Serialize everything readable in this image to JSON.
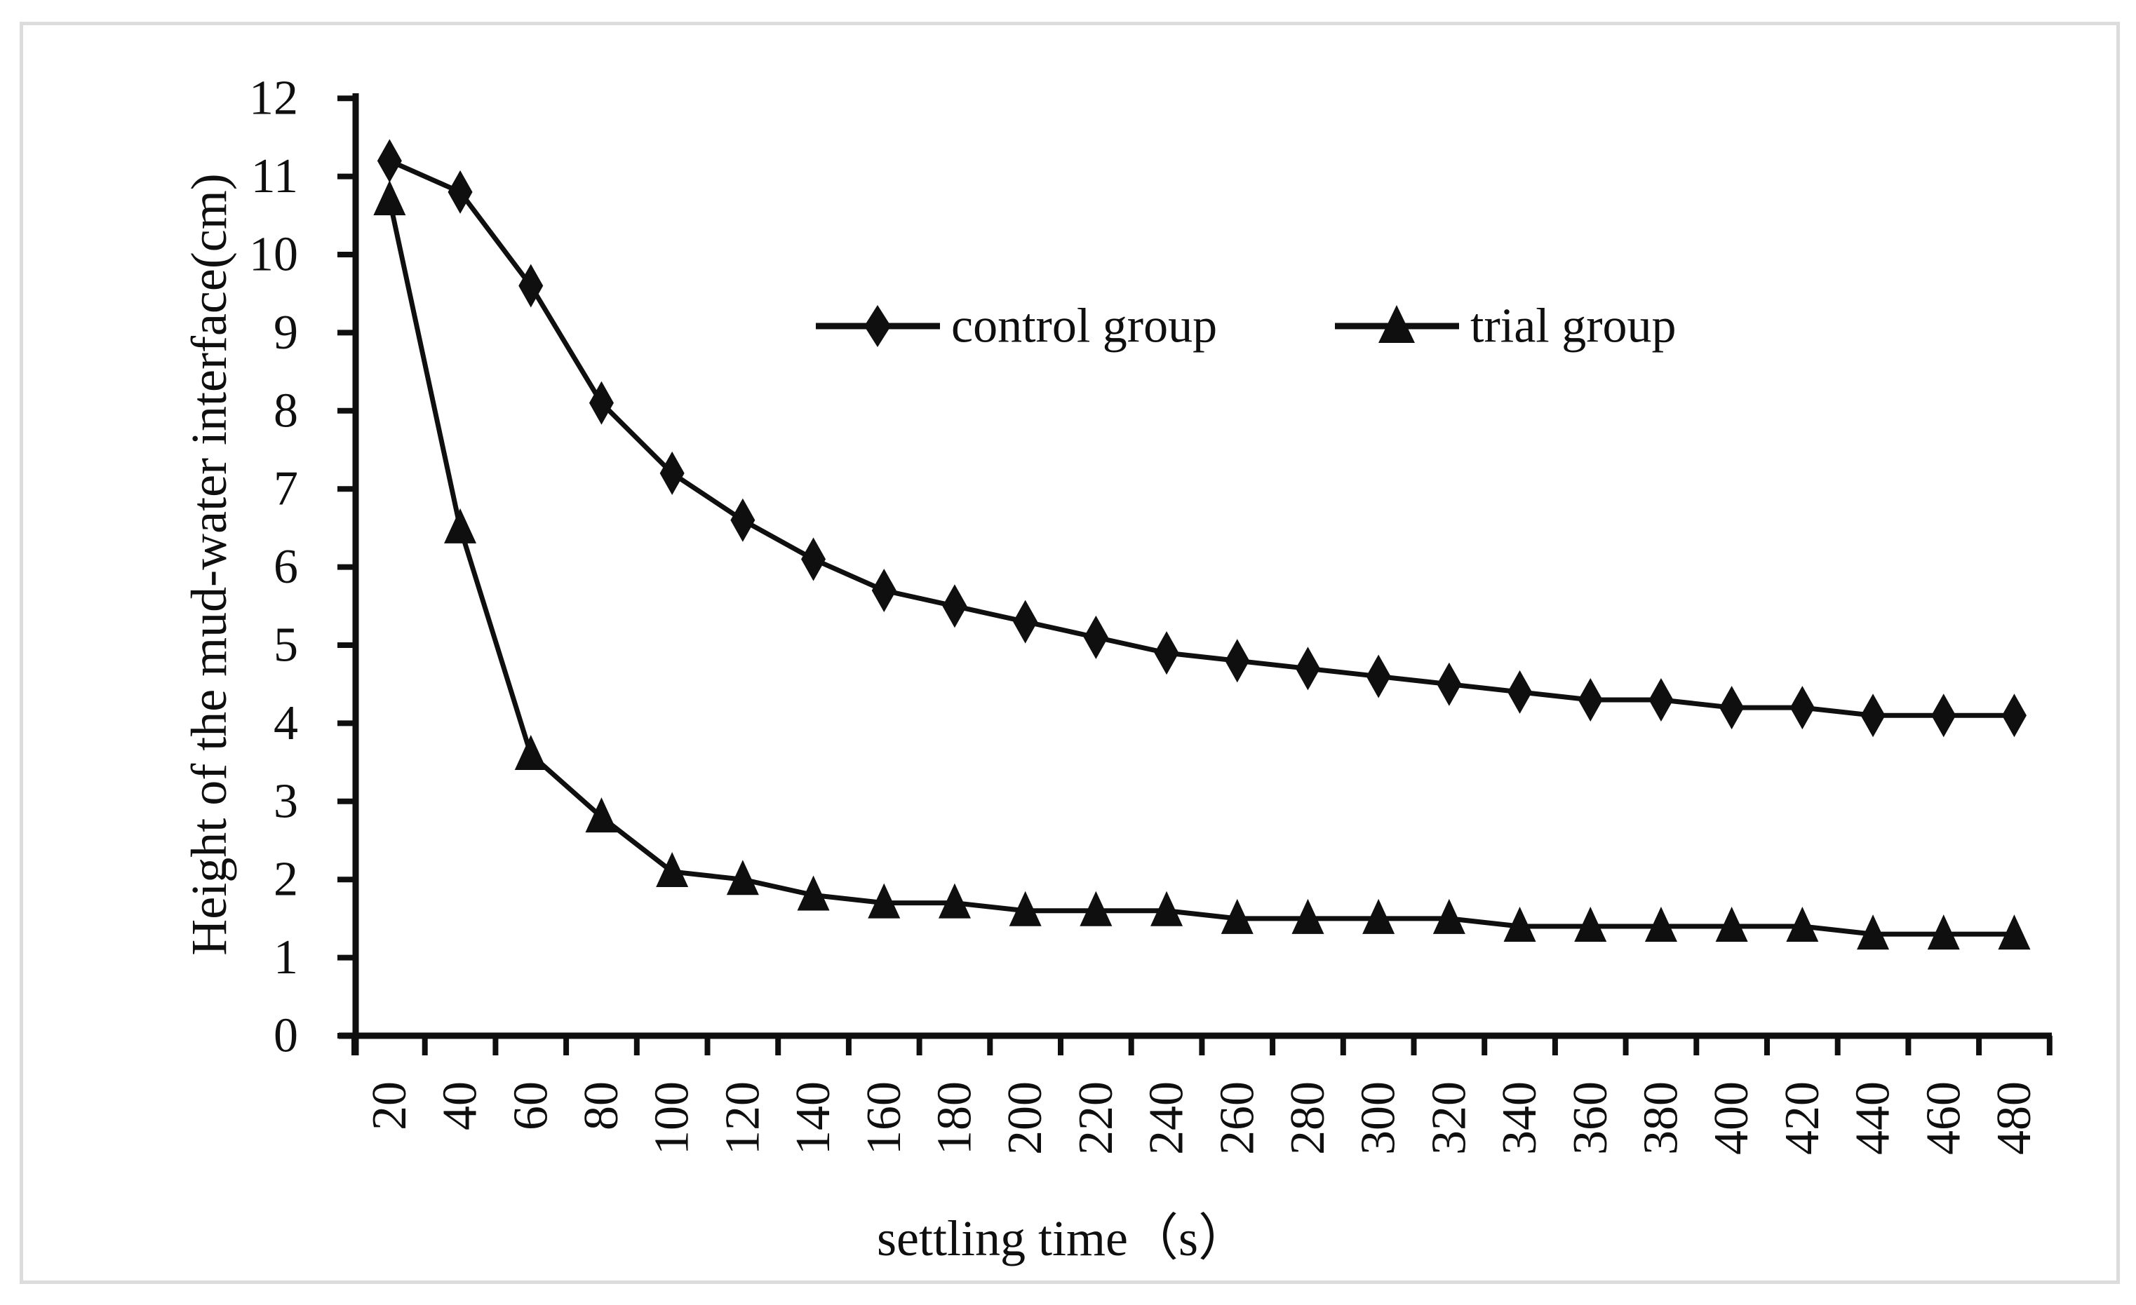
{
  "figure": {
    "background": "#ffffff",
    "frame_color": "#dcdcdc",
    "ink_color": "#0f0f0f"
  },
  "chart_data": {
    "type": "line",
    "categories": [
      20,
      40,
      60,
      80,
      100,
      120,
      140,
      160,
      180,
      200,
      220,
      240,
      260,
      280,
      300,
      320,
      340,
      360,
      380,
      400,
      420,
      440,
      460,
      480
    ],
    "series": [
      {
        "name": "control group",
        "marker": "diamond",
        "color": "#0f0f0f",
        "values": [
          11.2,
          10.8,
          9.6,
          8.1,
          7.2,
          6.6,
          6.1,
          5.7,
          5.5,
          5.3,
          5.1,
          4.9,
          4.8,
          4.7,
          4.6,
          4.5,
          4.4,
          4.3,
          4.3,
          4.2,
          4.2,
          4.1,
          4.1,
          4.1
        ]
      },
      {
        "name": "trial group",
        "marker": "triangle",
        "color": "#0f0f0f",
        "values": [
          10.7,
          6.5,
          3.6,
          2.8,
          2.1,
          2.0,
          1.8,
          1.7,
          1.7,
          1.6,
          1.6,
          1.6,
          1.5,
          1.5,
          1.5,
          1.5,
          1.4,
          1.4,
          1.4,
          1.4,
          1.4,
          1.3,
          1.3,
          1.3
        ]
      }
    ],
    "xlabel": "settling time（s）",
    "ylabel": "Height of the mud-water interface(cm)",
    "ylim": [
      0,
      12
    ],
    "ytick_step": 1,
    "yticks": [
      0,
      1,
      2,
      3,
      4,
      5,
      6,
      7,
      8,
      9,
      10,
      11,
      12
    ],
    "grid": false,
    "legend_position": "top-center"
  }
}
